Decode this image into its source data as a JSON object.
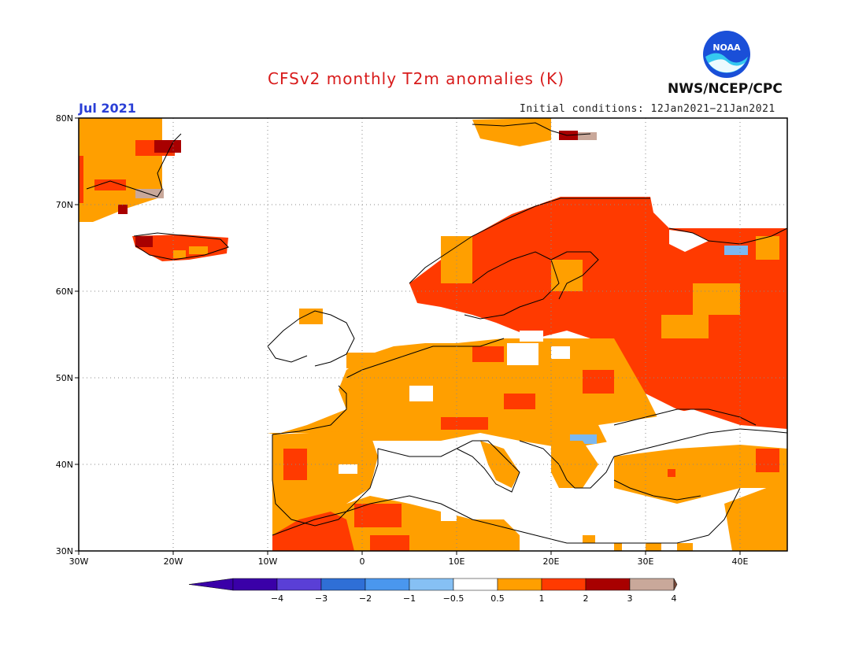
{
  "title": "CFSv2 monthly T2m anomalies (K)",
  "month_label": "Jul 2021",
  "init_conditions": "Initial conditions: 12Jan2021−21Jan2021",
  "agency": "NWS/NCEP/CPC",
  "logo_text": "NOAA",
  "map": {
    "lon_range": [
      -30,
      45
    ],
    "lat_range": [
      30,
      80
    ],
    "lon_ticks": [
      {
        "v": -30,
        "label": "30W"
      },
      {
        "v": -20,
        "label": "20W"
      },
      {
        "v": -10,
        "label": "10W"
      },
      {
        "v": 0,
        "label": "0"
      },
      {
        "v": 10,
        "label": "10E"
      },
      {
        "v": 20,
        "label": "20E"
      },
      {
        "v": 30,
        "label": "30E"
      },
      {
        "v": 40,
        "label": "40E"
      }
    ],
    "lat_ticks": [
      {
        "v": 30,
        "label": "30N"
      },
      {
        "v": 40,
        "label": "40N"
      },
      {
        "v": 50,
        "label": "50N"
      },
      {
        "v": 60,
        "label": "60N"
      },
      {
        "v": 70,
        "label": "70N"
      },
      {
        "v": 80,
        "label": "80N"
      }
    ],
    "colors": {
      "0.5-1": "#ff9f00",
      "1-2": "#ff3a00",
      "2-3": "#a80000",
      "3-4": "#c9a89a",
      "-1--0.5": "#7cb8f0"
    }
  },
  "legend": {
    "labels": [
      "−4",
      "−3",
      "−2",
      "−1",
      "−0.5",
      "0.5",
      "1",
      "2",
      "3",
      "4"
    ],
    "colors": [
      "#3a00a8",
      "#5a3fd6",
      "#2f6fd6",
      "#4a97ee",
      "#86c0f4",
      "#ffffff",
      "#ff9f00",
      "#ff3a00",
      "#a80000",
      "#c9a89a"
    ],
    "end_low": "#3a00a8",
    "end_high": "#7a4a3a"
  }
}
